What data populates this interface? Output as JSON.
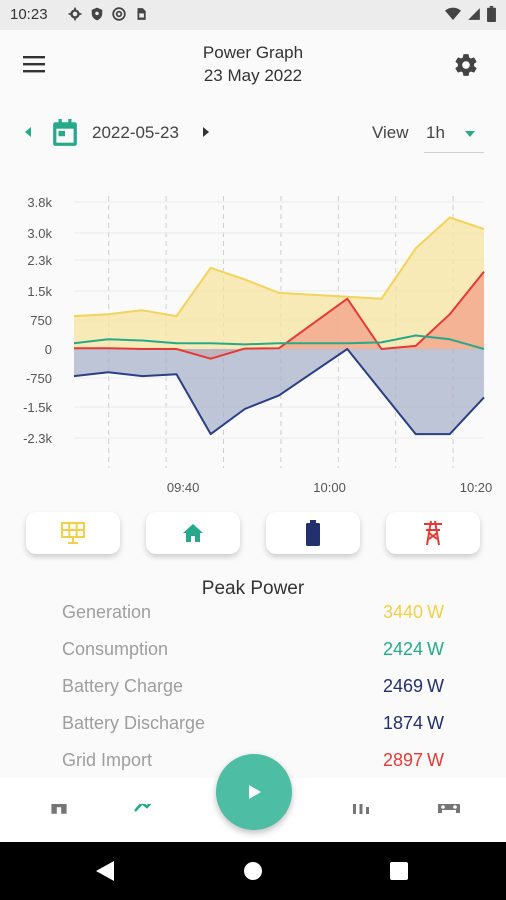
{
  "status_bar": {
    "time": "10:23"
  },
  "header": {
    "title": "Power Graph",
    "subtitle": "23 May 2022"
  },
  "date_nav": {
    "date": "2022-05-23",
    "view_label": "View",
    "view_value": "1h"
  },
  "chart_data": {
    "type": "area",
    "y_tick_labels": [
      "3.8k",
      "3.0k",
      "2.3k",
      "1.5k",
      "750",
      "0",
      "-750",
      "-1.5k",
      "-2.3k"
    ],
    "y_ticks": [
      3800,
      3000,
      2300,
      1500,
      750,
      0,
      -750,
      -1500,
      -2300
    ],
    "x_tick_labels": [
      "09:40",
      "10:00",
      "10:20"
    ],
    "x_tick_index": [
      4,
      9,
      14
    ],
    "ylim": [
      -3000,
      4000
    ],
    "x_count": 15,
    "series": [
      {
        "color": "#f2d35b",
        "fill": "#f7e4a0",
        "values": [
          850,
          900,
          1000,
          850,
          2100,
          1800,
          1450,
          1350,
          1300,
          2600,
          3400,
          3100
        ]
      },
      {
        "color": "#e53935",
        "fill": "#f3a088",
        "values": [
          20,
          20,
          0,
          0,
          -250,
          10,
          20,
          1300,
          0,
          80,
          900,
          2000
        ]
      },
      {
        "color": "#26a98a",
        "values": [
          150,
          250,
          220,
          150,
          150,
          120,
          150,
          150,
          170,
          350,
          250,
          0
        ]
      },
      {
        "color": "#2a3f84",
        "fill": "#aab3c9",
        "values": [
          -700,
          -600,
          -700,
          -650,
          -2200,
          -1550,
          -1200,
          0,
          -1100,
          -2200,
          -2200,
          -1250
        ]
      }
    ],
    "x_index": [
      0,
      1,
      2,
      3,
      4,
      5,
      6,
      8,
      9,
      10,
      11,
      12
    ]
  },
  "peak_power": {
    "title": "Peak Power",
    "unit": "W",
    "rows": [
      {
        "label": "Generation",
        "value": "3440",
        "color": "#f2cf4a"
      },
      {
        "label": "Consumption",
        "value": "2424",
        "color": "#26a98a"
      },
      {
        "label": "Battery Charge",
        "value": "2469",
        "color": "#22306e"
      },
      {
        "label": "Battery Discharge",
        "value": "1874",
        "color": "#22306e"
      },
      {
        "label": "Grid Import",
        "value": "2897",
        "color": "#e53935"
      }
    ]
  },
  "category_buttons": [
    {
      "icon": "solar-panel-icon",
      "color": "#f2cf4a"
    },
    {
      "icon": "home-icon",
      "color": "#26a98a"
    },
    {
      "icon": "battery-icon",
      "color": "#22306e"
    },
    {
      "icon": "power-tower-icon",
      "color": "#e53935"
    }
  ],
  "colors": {
    "accent": "#26a98a",
    "fab": "#4dbda3"
  },
  "bottom_nav": [
    "home-icon",
    "trend-icon",
    "play-icon",
    "bar-chart-icon",
    "car-icon"
  ]
}
